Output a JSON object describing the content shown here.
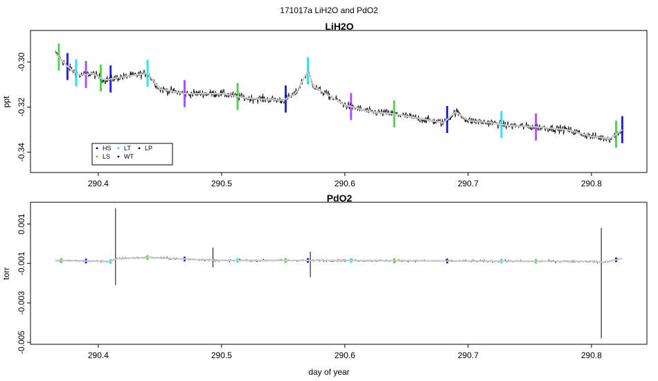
{
  "figure": {
    "suptitle": "171017a   LiH2O and PdO2",
    "xlabel": "day of year"
  },
  "chart_data": [
    {
      "type": "line",
      "title": "LiH2O",
      "ylabel": "ppt",
      "xlim": [
        290.345,
        290.845
      ],
      "ylim": [
        -0.349,
        -0.286
      ],
      "x_ticks": [
        290.4,
        290.5,
        290.6,
        290.7,
        290.8
      ],
      "x_tick_labels": [
        "290.4",
        "290.5",
        "290.6",
        "290.7",
        "290.8"
      ],
      "y_ticks": [
        -0.34,
        -0.32,
        -0.3
      ],
      "y_tick_labels": [
        "-0.34",
        "-0.32",
        "-0.30"
      ],
      "series": [
        {
          "x": [
            290.365,
            290.375,
            290.385,
            290.395,
            290.405,
            290.415,
            290.44,
            290.45,
            290.47,
            290.5,
            290.52,
            290.55,
            290.56,
            290.57,
            290.575,
            290.6,
            290.62,
            290.64,
            290.66,
            290.68,
            290.69,
            290.7,
            290.72,
            290.73,
            290.76,
            290.78,
            290.8,
            290.815,
            290.825
          ],
          "y": [
            -0.296,
            -0.302,
            -0.306,
            -0.305,
            -0.308,
            -0.307,
            -0.305,
            -0.312,
            -0.314,
            -0.314,
            -0.316,
            -0.317,
            -0.314,
            -0.304,
            -0.311,
            -0.319,
            -0.322,
            -0.323,
            -0.325,
            -0.327,
            -0.322,
            -0.326,
            -0.327,
            -0.328,
            -0.329,
            -0.33,
            -0.333,
            -0.334,
            -0.33
          ],
          "color": "#000000",
          "smooth_color": "#c8c8c8"
        }
      ],
      "legend": {
        "placement": "bottom-left",
        "entries": [
          {
            "label": "HS",
            "color": "#000000"
          },
          {
            "label": "LS",
            "color": "#33cc33"
          },
          {
            "label": "LT",
            "color": "#00e5e5"
          },
          {
            "label": "WT",
            "color": "#000000"
          },
          {
            "label": "LP",
            "color": "#000000"
          }
        ]
      },
      "highlight_colors": [
        "#33cc33",
        "#0000cc",
        "#00e5e5",
        "#9933ff"
      ]
    },
    {
      "type": "line",
      "title": "PdO2",
      "ylabel": "torr",
      "xlabel": "day of year",
      "xlim": [
        290.345,
        290.845
      ],
      "ylim": [
        -0.0051,
        0.0021
      ],
      "x_ticks": [
        290.4,
        290.5,
        290.6,
        290.7,
        290.8
      ],
      "x_tick_labels": [
        "290.4",
        "290.5",
        "290.6",
        "290.7",
        "290.8"
      ],
      "y_ticks": [
        -0.005,
        -0.003,
        -0.001,
        0.001
      ],
      "y_tick_labels": [
        "-0.005",
        "-0.003",
        "-0.001",
        "0.001"
      ],
      "series": [
        {
          "x": [
            290.365,
            290.41,
            290.415,
            290.44,
            290.5,
            290.6,
            290.7,
            290.8,
            290.81,
            290.825
          ],
          "y": [
            -0.00085,
            -0.0009,
            -0.00075,
            -0.0007,
            -0.00085,
            -0.00085,
            -0.00088,
            -0.0009,
            -0.00095,
            -0.00075
          ],
          "color": "#000000",
          "smooth_color": "#c8c8c8"
        }
      ],
      "spikes": [
        {
          "x": 290.414,
          "max": 0.0018,
          "min": -0.0021
        },
        {
          "x": 290.493,
          "max": -0.0002,
          "min": -0.0012
        },
        {
          "x": 290.572,
          "max": -0.0004,
          "min": -0.0017
        },
        {
          "x": 290.808,
          "max": 0.0008,
          "min": -0.0048
        }
      ]
    }
  ]
}
